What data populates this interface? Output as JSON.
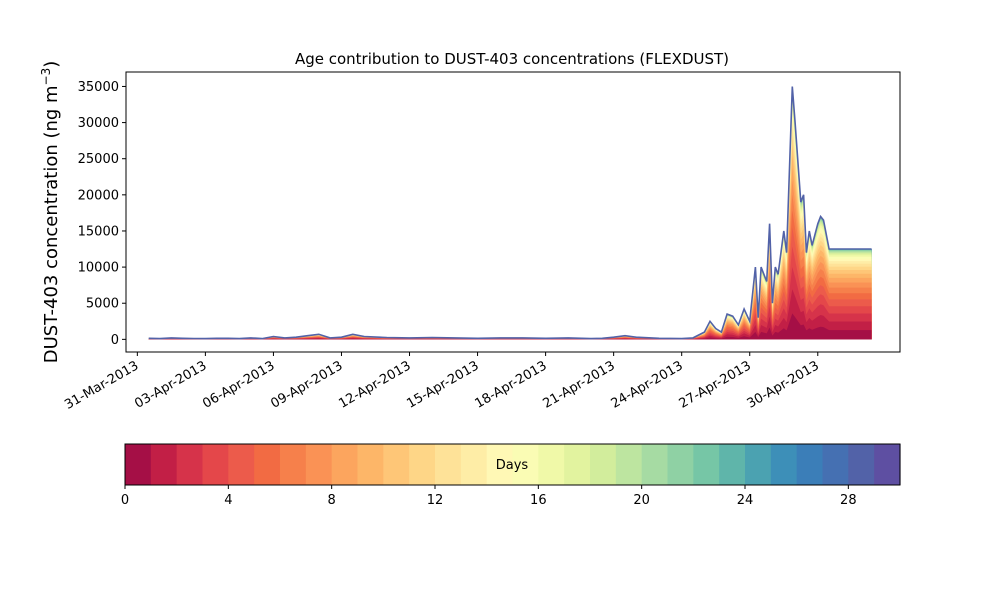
{
  "chart_data": {
    "type": "area",
    "title": "Age contribution to DUST-403 concentrations (FLEXDUST)",
    "xlabel": "",
    "ylabel": "DUST-403 concentration (ng m$^{-3}$)",
    "ylabel_text": "DUST-403 concentration (ng m",
    "ylabel_sup": "−3",
    "ylabel_close": ")",
    "xlim": [
      "2013-03-30T12:00",
      "2013-05-03T15:00"
    ],
    "ylim": [
      -1750,
      37000
    ],
    "x_ticks": [
      "31-Mar-2013",
      "03-Apr-2013",
      "06-Apr-2013",
      "09-Apr-2013",
      "12-Apr-2013",
      "15-Apr-2013",
      "18-Apr-2013",
      "21-Apr-2013",
      "24-Apr-2013",
      "27-Apr-2013",
      "30-Apr-2013"
    ],
    "y_ticks": [
      0,
      5000,
      10000,
      15000,
      20000,
      25000,
      30000,
      35000
    ],
    "grid": false,
    "legend": "none",
    "series_description": "Stacked contribution by particle age (0-30 days); outer line = total concentration",
    "total": {
      "x": [
        "2013-03-31T12:00",
        "2013-04-01T00:00",
        "2013-04-01T12:00",
        "2013-04-02T00:00",
        "2013-04-02T12:00",
        "2013-04-03T00:00",
        "2013-04-03T12:00",
        "2013-04-04T00:00",
        "2013-04-04T12:00",
        "2013-04-05T00:00",
        "2013-04-05T12:00",
        "2013-04-06T00:00",
        "2013-04-06T12:00",
        "2013-04-07T00:00",
        "2013-04-07T12:00",
        "2013-04-08T00:00",
        "2013-04-08T12:00",
        "2013-04-09T00:00",
        "2013-04-09T12:00",
        "2013-04-10T00:00",
        "2013-04-11T00:00",
        "2013-04-12T00:00",
        "2013-04-13T00:00",
        "2013-04-14T00:00",
        "2013-04-15T00:00",
        "2013-04-16T00:00",
        "2013-04-17T00:00",
        "2013-04-18T00:00",
        "2013-04-19T00:00",
        "2013-04-20T00:00",
        "2013-04-20T12:00",
        "2013-04-21T00:00",
        "2013-04-21T12:00",
        "2013-04-22T00:00",
        "2013-04-23T00:00",
        "2013-04-24T00:00",
        "2013-04-24T12:00",
        "2013-04-25T00:00",
        "2013-04-25T06:00",
        "2013-04-25T12:00",
        "2013-04-25T18:00",
        "2013-04-26T00:00",
        "2013-04-26T06:00",
        "2013-04-26T12:00",
        "2013-04-26T18:00",
        "2013-04-27T00:00",
        "2013-04-27T06:00",
        "2013-04-27T09:00",
        "2013-04-27T12:00",
        "2013-04-27T18:00",
        "2013-04-27T21:00",
        "2013-04-28T00:00",
        "2013-04-28T03:00",
        "2013-04-28T06:00",
        "2013-04-28T12:00",
        "2013-04-28T15:00",
        "2013-04-28T21:00",
        "2013-04-29T00:00",
        "2013-04-29T06:00",
        "2013-04-29T09:00",
        "2013-04-29T12:00",
        "2013-04-29T15:00",
        "2013-04-29T18:00",
        "2013-04-30T00:00",
        "2013-04-30T03:00",
        "2013-04-30T06:00",
        "2013-04-30T12:00",
        "2013-04-30T18:00",
        "2013-05-01T00:00",
        "2013-05-01T06:00",
        "2013-05-01T09:00",
        "2013-05-01T12:00",
        "2013-05-01T18:00",
        "2013-05-02T00:00",
        "2013-05-02T06:00",
        "2013-05-02T09:00"
      ],
      "values": [
        150,
        100,
        200,
        150,
        120,
        100,
        150,
        150,
        100,
        200,
        100,
        400,
        200,
        300,
        500,
        700,
        200,
        300,
        700,
        400,
        250,
        200,
        250,
        200,
        150,
        200,
        200,
        150,
        200,
        100,
        150,
        300,
        500,
        300,
        150,
        100,
        200,
        1000,
        2500,
        1500,
        1000,
        3500,
        3200,
        2000,
        4200,
        2500,
        10000,
        3000,
        10000,
        8000,
        16000,
        5000,
        10000,
        9000,
        15000,
        12000,
        35000,
        30000,
        19000,
        20000,
        12000,
        15000,
        13000,
        16000,
        17000,
        16500,
        12500,
        12500,
        12500,
        12500,
        12500,
        12500,
        12500,
        12500,
        12500,
        12500
      ]
    },
    "colorbar": {
      "label": "Days",
      "range": [
        0,
        30
      ],
      "ticks": [
        0,
        4,
        8,
        12,
        16,
        20,
        24,
        28
      ],
      "colors": [
        "#a50f46",
        "#c21f46",
        "#d6334a",
        "#e4474a",
        "#ec5b4b",
        "#f26b43",
        "#f6804b",
        "#fa9255",
        "#fca55e",
        "#fdb668",
        "#fec677",
        "#fed687",
        "#fee298",
        "#feeda6",
        "#fff8b5",
        "#fafcb4",
        "#f0f9a8",
        "#e2f39f",
        "#d2ed9c",
        "#bde5a0",
        "#a6dba3",
        "#8fd1a4",
        "#76c6a6",
        "#5fb5aa",
        "#4ba2b1",
        "#3d8fb8",
        "#3b7eb8",
        "#4570b2",
        "#5262a8",
        "#5e4fa2"
      ]
    }
  }
}
